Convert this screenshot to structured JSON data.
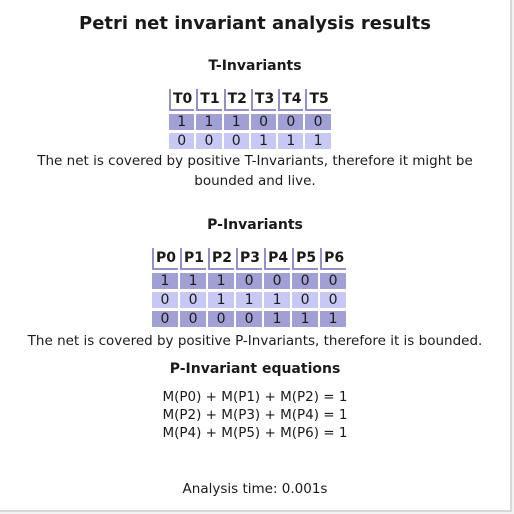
{
  "title": "Petri net invariant analysis results",
  "t_invariants": {
    "heading": "T-Invariants",
    "columns": [
      "T0",
      "T1",
      "T2",
      "T3",
      "T4",
      "T5"
    ],
    "rows": [
      [
        "1",
        "1",
        "1",
        "0",
        "0",
        "0"
      ],
      [
        "0",
        "0",
        "0",
        "1",
        "1",
        "1"
      ]
    ],
    "message_line1": "The net is covered by positive T-Invariants, therefore it might be",
    "message_line2": "bounded and live."
  },
  "p_invariants": {
    "heading": "P-Invariants",
    "columns": [
      "P0",
      "P1",
      "P2",
      "P3",
      "P4",
      "P5",
      "P6"
    ],
    "rows": [
      [
        "1",
        "1",
        "1",
        "0",
        "0",
        "0",
        "0"
      ],
      [
        "0",
        "0",
        "1",
        "1",
        "1",
        "0",
        "0"
      ],
      [
        "0",
        "0",
        "0",
        "0",
        "1",
        "1",
        "1"
      ]
    ],
    "message": "The net is covered by positive P-Invariants, therefore it is bounded."
  },
  "equations": {
    "heading": "P-Invariant equations",
    "items": [
      "M(P0) + M(P1) + M(P2) = 1",
      "M(P2) + M(P3) + M(P4) = 1",
      "M(P4) + M(P5) + M(P6) = 1"
    ]
  },
  "analysis_time": "Analysis time: 0.001s",
  "colors": {
    "row_a": "#a0a0d4",
    "row_b": "#c8c8f4",
    "header_border": "#9090c8"
  }
}
